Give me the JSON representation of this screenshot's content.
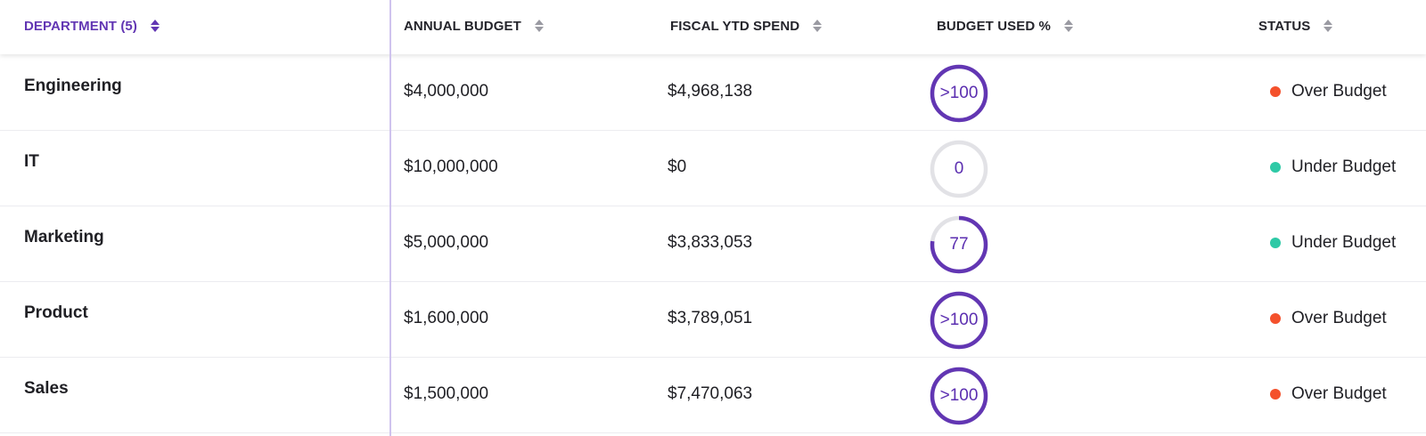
{
  "colors": {
    "accent": "#6236b3",
    "gauge_track": "#e2e2e6",
    "over_budget": "#f4512c",
    "under_budget": "#2ec9a6",
    "divider": "#cfc3ee"
  },
  "header": {
    "department": "DEPARTMENT (5)",
    "annual_budget": "ANNUAL BUDGET",
    "fiscal_ytd_spend": "FISCAL YTD SPEND",
    "budget_used_pct": "BUDGET USED %",
    "status": "STATUS"
  },
  "rows": [
    {
      "department": "Engineering",
      "annual_budget": "$4,000,000",
      "fiscal_ytd_spend": "$4,968,138",
      "budget_used_label": ">100",
      "budget_used_fraction": 1.0,
      "status": "Over Budget",
      "status_color": "#f4512c"
    },
    {
      "department": "IT",
      "annual_budget": "$10,000,000",
      "fiscal_ytd_spend": "$0",
      "budget_used_label": "0",
      "budget_used_fraction": 0.0,
      "status": "Under Budget",
      "status_color": "#2ec9a6"
    },
    {
      "department": "Marketing",
      "annual_budget": "$5,000,000",
      "fiscal_ytd_spend": "$3,833,053",
      "budget_used_label": "77",
      "budget_used_fraction": 0.77,
      "status": "Under Budget",
      "status_color": "#2ec9a6"
    },
    {
      "department": "Product",
      "annual_budget": "$1,600,000",
      "fiscal_ytd_spend": "$3,789,051",
      "budget_used_label": ">100",
      "budget_used_fraction": 1.0,
      "status": "Over Budget",
      "status_color": "#f4512c"
    },
    {
      "department": "Sales",
      "annual_budget": "$1,500,000",
      "fiscal_ytd_spend": "$7,470,063",
      "budget_used_label": ">100",
      "budget_used_fraction": 1.0,
      "status": "Over Budget",
      "status_color": "#f4512c"
    }
  ]
}
